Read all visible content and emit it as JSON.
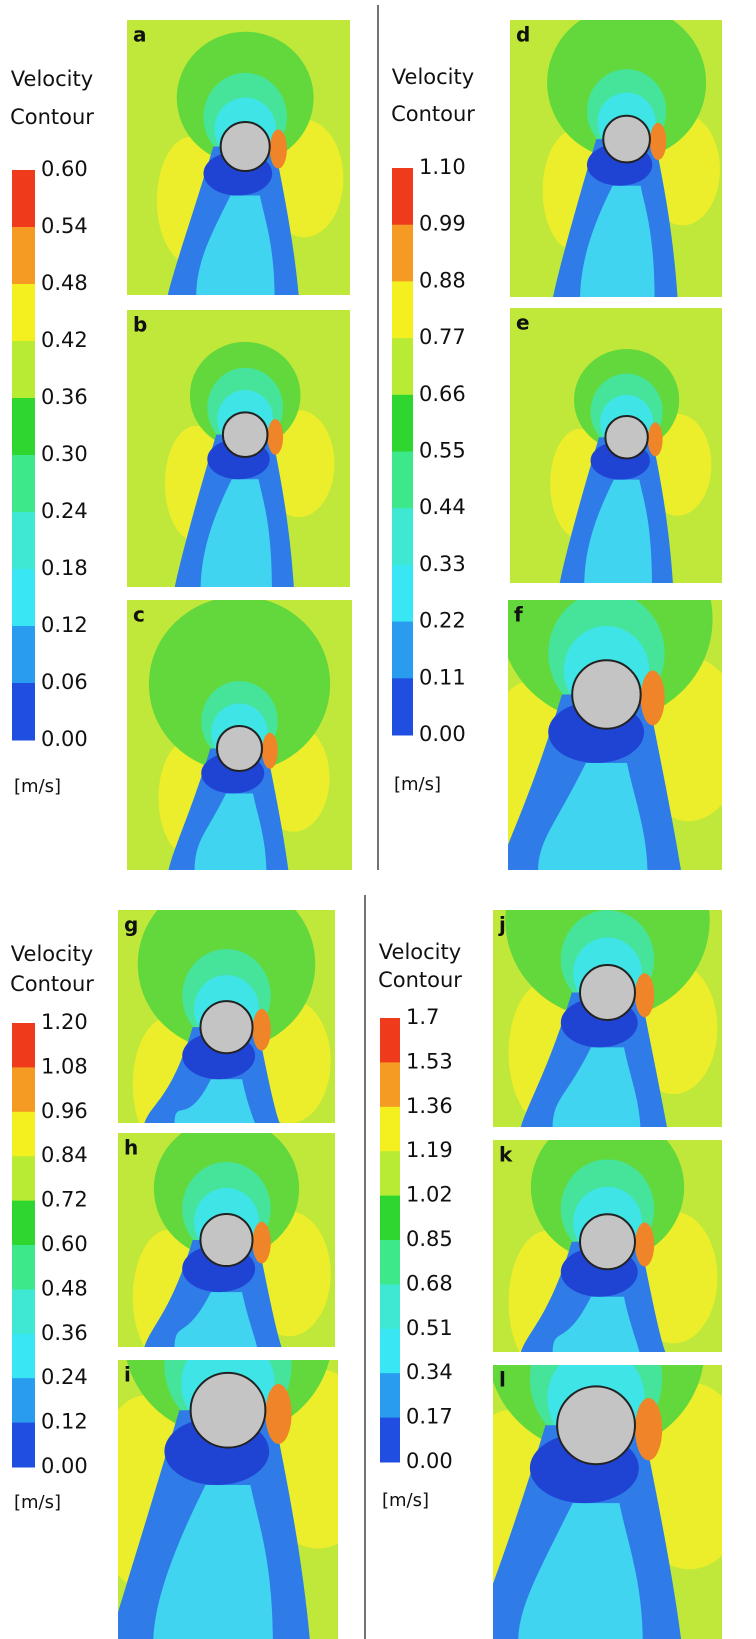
{
  "groups": [
    {
      "title_line1": "Velocity",
      "title_line2": "Contour",
      "scale": [
        "0.60",
        "0.54",
        "0.48",
        "0.42",
        "0.36",
        "0.30",
        "0.24",
        "0.18",
        "0.12",
        "0.06",
        "0.00"
      ],
      "unit": "[m/s]",
      "panels": [
        "a",
        "b",
        "c"
      ]
    },
    {
      "title_line1": "Velocity",
      "title_line2": "Contour",
      "scale": [
        "1.10",
        "0.99",
        "0.88",
        "0.77",
        "0.66",
        "0.55",
        "0.44",
        "0.33",
        "0.22",
        "0.11",
        "0.00"
      ],
      "unit": "[m/s]",
      "panels": [
        "d",
        "e",
        "f"
      ]
    },
    {
      "title_line1": "Velocity",
      "title_line2": "Contour",
      "scale": [
        "1.20",
        "1.08",
        "0.96",
        "0.84",
        "0.72",
        "0.60",
        "0.48",
        "0.36",
        "0.24",
        "0.12",
        "0.00"
      ],
      "unit": "[m/s]",
      "panels": [
        "g",
        "h",
        "i"
      ]
    },
    {
      "title_line1": "Velocity",
      "title_line2": "Contour",
      "scale": [
        "1.7",
        "1.53",
        "1.36",
        "1.19",
        "1.02",
        "0.85",
        "0.68",
        "0.51",
        "0.34",
        "0.17",
        "0.00"
      ],
      "unit": "[m/s]",
      "panels": [
        "j",
        "k",
        "l"
      ]
    }
  ]
}
